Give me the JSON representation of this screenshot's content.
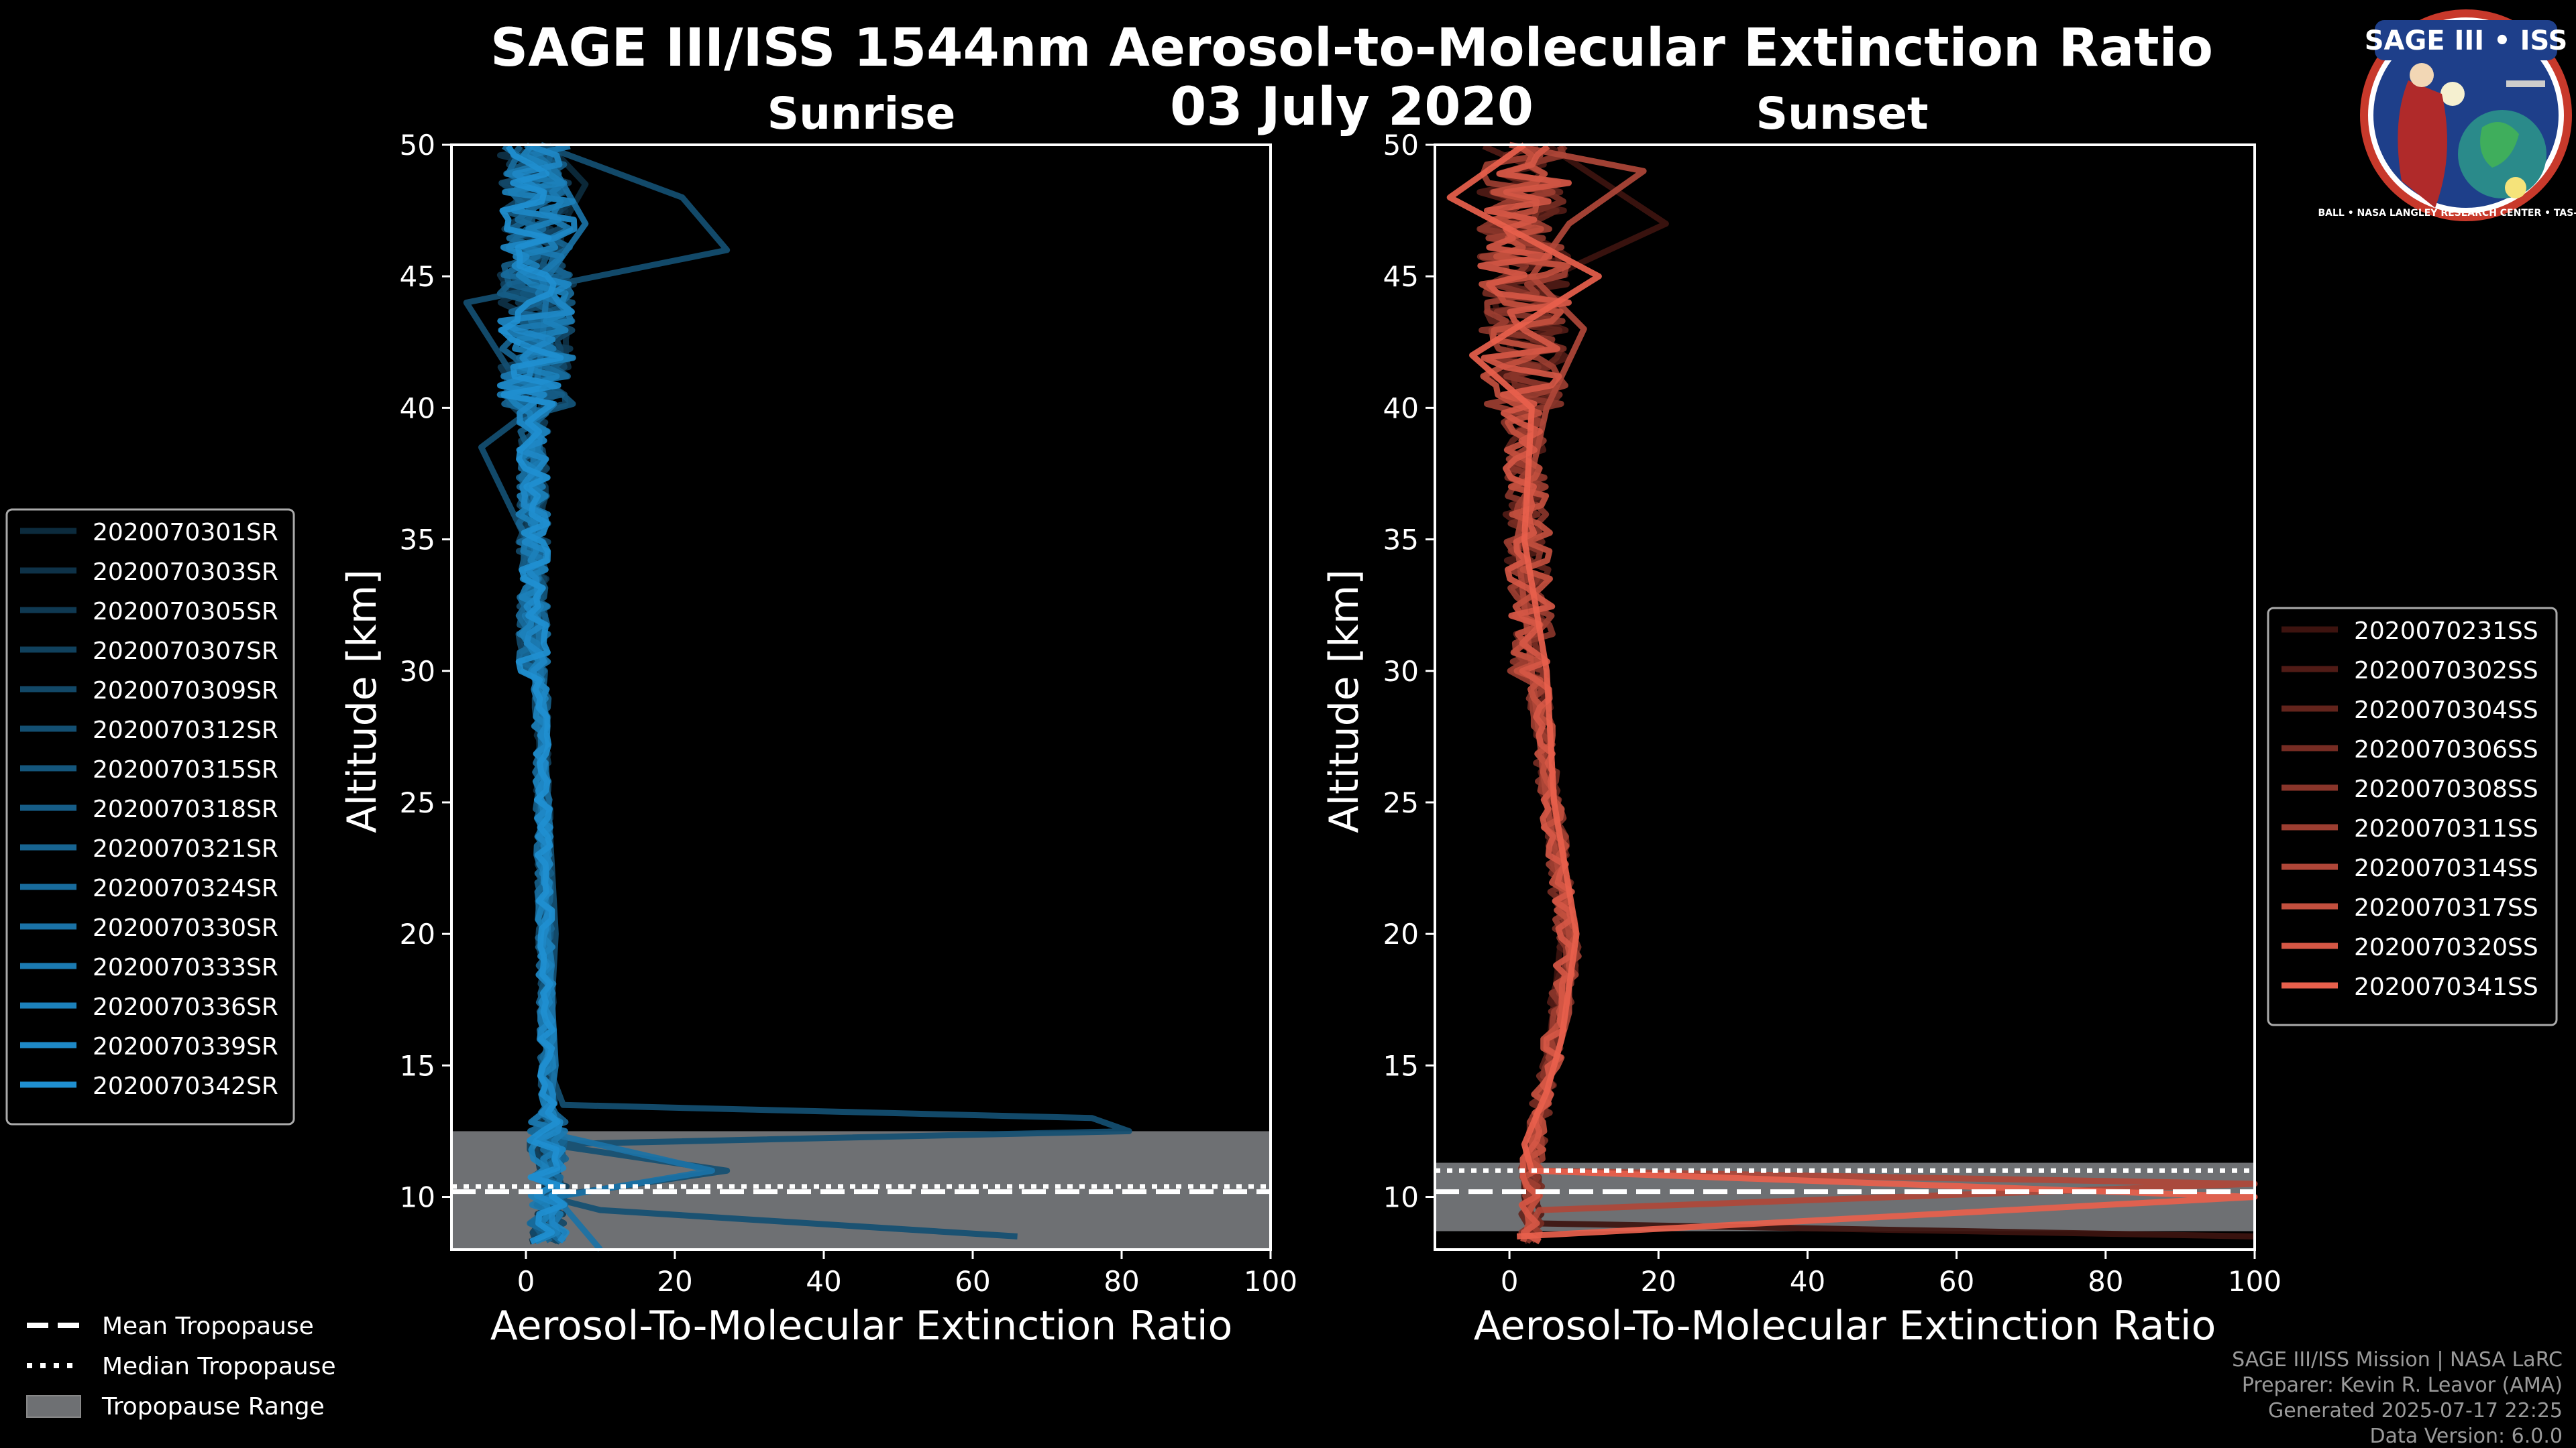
{
  "title_line1": "SAGE III/ISS 1544nm Aerosol-to-Molecular Extinction Ratio",
  "title_line2": "03 July 2020",
  "logo": {
    "text": "SAGE III • ISS",
    "ring_text": "BALL • NASA LANGLEY RESEARCH CENTER • TAS-I • ESA"
  },
  "colors": {
    "sunrise": "#1f8fd0",
    "sunset": "#e8604c",
    "tropopause_fill": "#6e7073",
    "legend_border": "#aaaaaa"
  },
  "chart_data": [
    {
      "type": "line",
      "panel": "Sunrise",
      "title": "Sunrise",
      "xlabel": "Aerosol-To-Molecular Extinction Ratio",
      "ylabel": "Altitude [km]",
      "xlim": [
        -10,
        100
      ],
      "ylim": [
        8,
        50
      ],
      "xticks": [
        0,
        20,
        40,
        60,
        80,
        100
      ],
      "yticks": [
        10,
        15,
        20,
        25,
        30,
        35,
        40,
        45,
        50
      ],
      "tropopause": {
        "mean_km": 10.2,
        "median_km": 10.4,
        "range_km": [
          8,
          12.5
        ]
      },
      "legend_position": "left",
      "series_names": [
        "2020070301SR",
        "2020070303SR",
        "2020070305SR",
        "2020070307SR",
        "2020070309SR",
        "2020070312SR",
        "2020070315SR",
        "2020070318SR",
        "2020070321SR",
        "2020070324SR",
        "2020070330SR",
        "2020070333SR",
        "2020070336SR",
        "2020070339SR",
        "2020070342SR"
      ],
      "example_profiles": [
        {
          "name": "2020070301SR",
          "alt_km": [
            8.5,
            10,
            11,
            12,
            13,
            15,
            17,
            20,
            25,
            30,
            35,
            40,
            42,
            45,
            47,
            48.5,
            50
          ],
          "ratio": [
            2,
            3,
            2.5,
            2,
            2.5,
            3,
            3,
            2.5,
            2,
            1.5,
            1,
            2,
            3,
            4,
            5,
            8,
            3
          ]
        },
        {
          "name": "2020070312SR",
          "alt_km": [
            8.5,
            9.5,
            10,
            11,
            12,
            12.5,
            13,
            13.5,
            15,
            20,
            25,
            30,
            35,
            38.5,
            40,
            44,
            46,
            48,
            50
          ],
          "ratio": [
            66,
            10,
            3,
            27,
            3,
            81,
            76,
            5,
            3,
            4,
            3,
            2,
            0,
            -6,
            1,
            -8,
            27,
            21,
            2
          ]
        },
        {
          "name": "2020070330SR",
          "alt_km": [
            8,
            10,
            11,
            12.3,
            13,
            15,
            20,
            25,
            30,
            35,
            40,
            42,
            45,
            47,
            49,
            50
          ],
          "ratio": [
            10,
            4,
            25,
            5,
            3,
            4,
            3,
            2,
            2,
            1,
            1,
            2,
            3,
            8,
            4,
            0
          ]
        }
      ]
    },
    {
      "type": "line",
      "panel": "Sunset",
      "title": "Sunset",
      "xlabel": "Aerosol-To-Molecular Extinction Ratio",
      "ylabel": "Altitude [km]",
      "xlim": [
        -10,
        100
      ],
      "ylim": [
        8,
        50
      ],
      "xticks": [
        0,
        20,
        40,
        60,
        80,
        100
      ],
      "yticks": [
        10,
        15,
        20,
        25,
        30,
        35,
        40,
        45,
        50
      ],
      "tropopause": {
        "mean_km": 10.2,
        "median_km": 11.0,
        "range_km": [
          8.7,
          11.3
        ]
      },
      "legend_position": "right",
      "series_names": [
        "2020070231SS",
        "2020070302SS",
        "2020070304SS",
        "2020070306SS",
        "2020070308SS",
        "2020070311SS",
        "2020070314SS",
        "2020070317SS",
        "2020070320SS",
        "2020070341SS"
      ],
      "example_profiles": [
        {
          "name": "2020070231SS",
          "alt_km": [
            8.5,
            9,
            10,
            11,
            12,
            15,
            20,
            25,
            30,
            35,
            40,
            44,
            47,
            50
          ],
          "ratio": [
            100,
            3,
            2,
            2,
            3,
            5,
            7,
            5,
            4,
            2,
            3,
            -2,
            21,
            5
          ]
        },
        {
          "name": "2020070314SS",
          "alt_km": [
            8.5,
            9.5,
            10.5,
            11,
            12,
            13,
            15,
            17,
            20,
            25,
            30,
            35,
            40,
            43,
            45,
            47,
            49,
            50
          ],
          "ratio": [
            2,
            4,
            100,
            4,
            3,
            4,
            6,
            8,
            8,
            5,
            3,
            1,
            5,
            10,
            3,
            8,
            18,
            0
          ]
        },
        {
          "name": "2020070341SS",
          "alt_km": [
            8.5,
            10,
            11,
            12,
            14,
            16,
            20,
            25,
            30,
            35,
            40,
            42,
            45,
            48,
            50
          ],
          "ratio": [
            1,
            100,
            3,
            2,
            5,
            7,
            9,
            6,
            5,
            2,
            3,
            -5,
            12,
            -8,
            2
          ]
        }
      ]
    }
  ],
  "shared_legend": {
    "mean_label": "Mean Tropopause",
    "median_label": "Median Tropopause",
    "range_label": "Tropopause Range"
  },
  "credits": {
    "line1": "SAGE III/ISS Mission | NASA LaRC",
    "line2": "Preparer: Kevin R. Leavor (AMA)",
    "line3": "Generated 2025-07-17 22:25",
    "line4": "Data Version: 6.0.0"
  }
}
